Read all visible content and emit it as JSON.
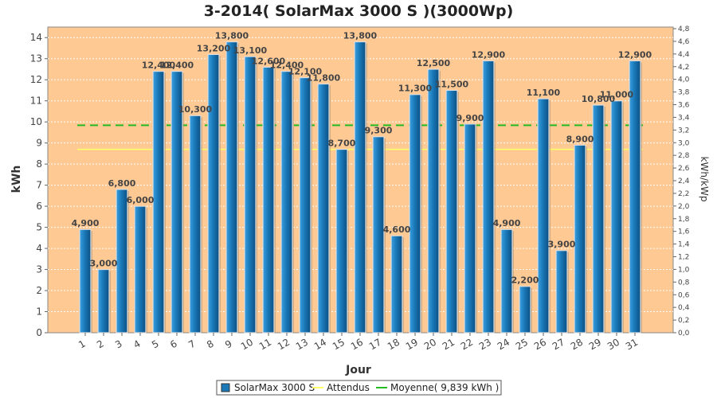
{
  "chart_data": {
    "type": "bar",
    "title": "3-2014( SolarMax 3000 S )(3000Wp)",
    "xlabel": "Jour",
    "ylabel": "kWh",
    "ylabel_right": "kWh/kWp",
    "ylim": [
      0,
      14.5
    ],
    "ylim_right": [
      0,
      4.8
    ],
    "categories": [
      "1",
      "2",
      "3",
      "4",
      "5",
      "6",
      "7",
      "8",
      "9",
      "10",
      "11",
      "12",
      "13",
      "14",
      "15",
      "16",
      "17",
      "18",
      "19",
      "20",
      "21",
      "22",
      "23",
      "24",
      "25",
      "26",
      "27",
      "28",
      "29",
      "30",
      "31"
    ],
    "series": [
      {
        "name": "SolarMax 3000 S",
        "values": [
          4.9,
          3.0,
          6.8,
          6.0,
          12.4,
          12.4,
          10.3,
          13.2,
          13.8,
          13.1,
          12.6,
          12.4,
          12.1,
          11.8,
          8.7,
          13.8,
          9.3,
          4.6,
          11.3,
          12.5,
          11.5,
          9.9,
          12.9,
          4.9,
          2.2,
          11.1,
          3.9,
          8.9,
          10.8,
          11.0,
          12.9
        ],
        "labels": [
          "4,900",
          "3,000",
          "6,800",
          "6,000",
          "12,400",
          "12,400",
          "10,300",
          "13,200",
          "13,800",
          "13,100",
          "12,600",
          "12,400",
          "12,100",
          "11,800",
          "8,700",
          "13,800",
          "9,300",
          "4,600",
          "11,300",
          "12,500",
          "11,500",
          "9,900",
          "12,900",
          "4,900",
          "2,200",
          "11,100",
          "3,900",
          "8,900",
          "10,800",
          "11,000",
          "12,900"
        ],
        "color": "#1a78b8"
      }
    ],
    "attendus_value": 8.7,
    "moyenne_value": 9.839,
    "y_ticks": [
      "0",
      "1",
      "2",
      "3",
      "4",
      "5",
      "6",
      "7",
      "8",
      "9",
      "10",
      "11",
      "12",
      "13",
      "14"
    ],
    "y_ticks_right": [
      "0,0",
      "0,2",
      "0,4",
      "0,6",
      "0,8",
      "1,0",
      "1,2",
      "1,4",
      "1,6",
      "1,8",
      "2,0",
      "2,2",
      "2,4",
      "2,6",
      "2,8",
      "3,0",
      "3,2",
      "3,4",
      "3,6",
      "3,8",
      "4,0",
      "4,2",
      "4,4",
      "4,6",
      "4,8"
    ],
    "legend": [
      {
        "label": "SolarMax 3000 S",
        "color": "#1a78b8",
        "kind": "box"
      },
      {
        "label": "Attendus",
        "color": "#ffff66",
        "kind": "line"
      },
      {
        "label": "Moyenne( 9,839 kWh )",
        "color": "#22bb22",
        "kind": "line"
      }
    ],
    "legend_position": "bottom",
    "plot_background": "#ffc994",
    "grid": true
  }
}
